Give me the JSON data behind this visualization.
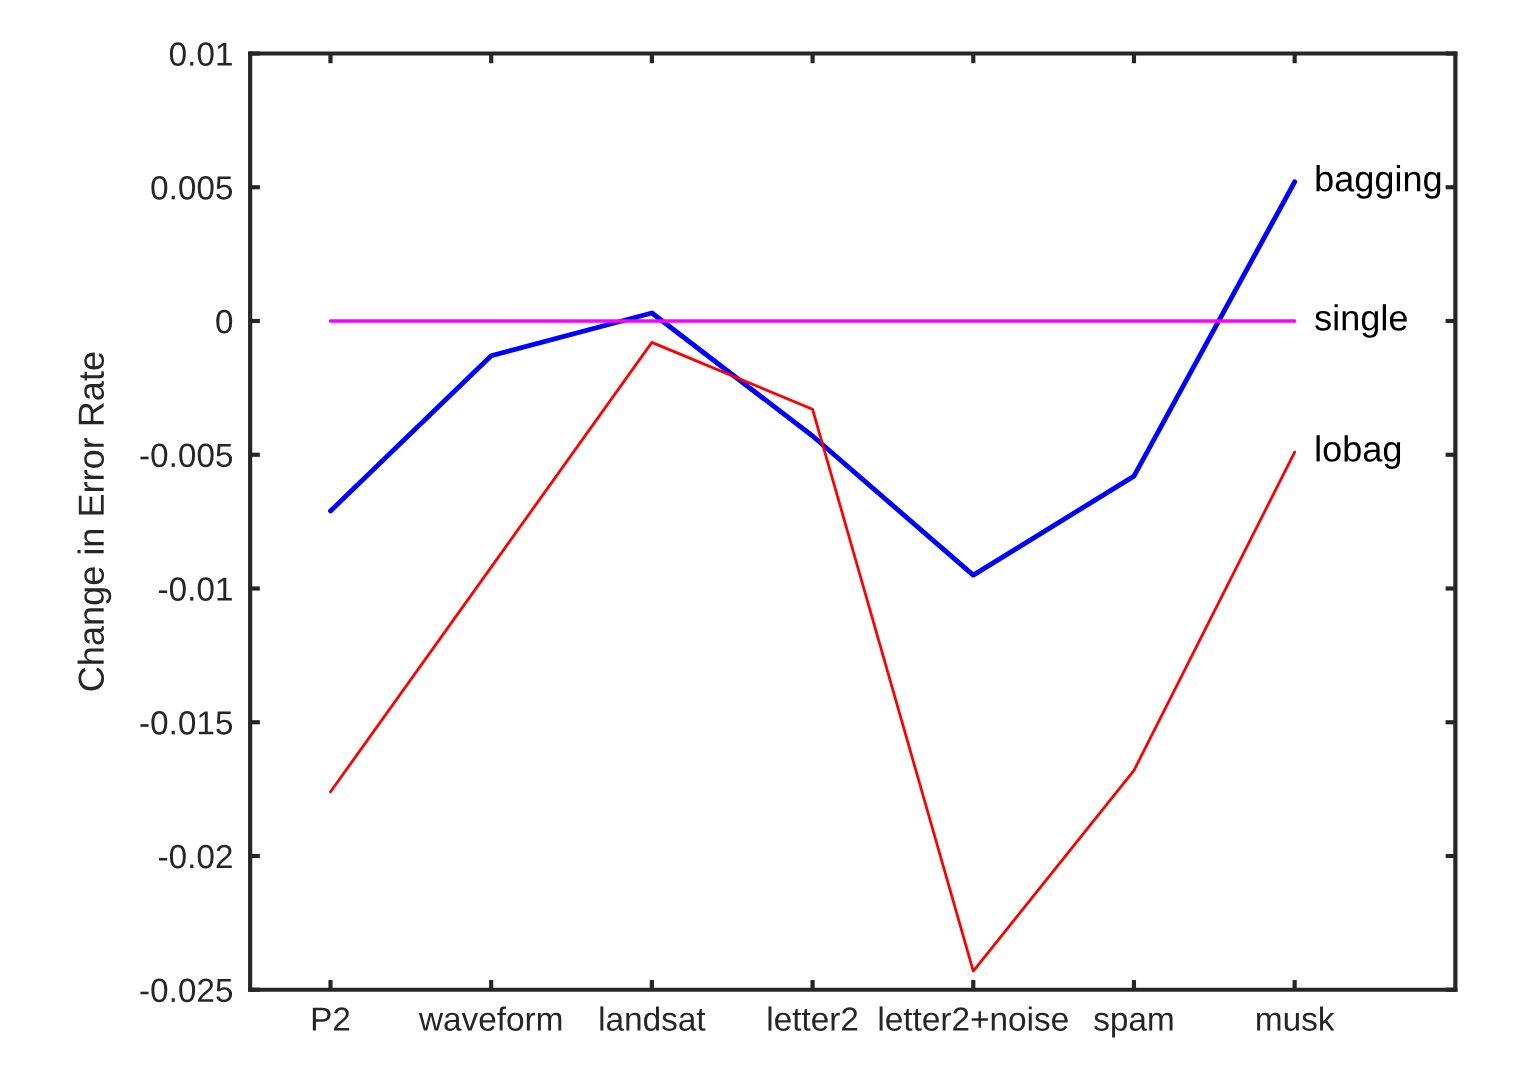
{
  "chart_data": {
    "type": "line",
    "ylabel": "Change in Error Rate",
    "categories": [
      "P2",
      "waveform",
      "landsat",
      "letter2",
      "letter2+noise",
      "spam",
      "musk"
    ],
    "series": [
      {
        "name": "bagging",
        "color": "#0000ff",
        "values": [
          -0.0071,
          -0.0013,
          0.0003,
          -0.0043,
          -0.0095,
          -0.0058,
          0.0052
        ]
      },
      {
        "name": "single",
        "color": "#ff00ff",
        "values": [
          0,
          0,
          0,
          0,
          0,
          0,
          0
        ]
      },
      {
        "name": "lobag",
        "color": "#ff0000",
        "values": [
          -0.0176,
          -0.0092,
          -0.0008,
          -0.0033,
          -0.0243,
          -0.0168,
          -0.0049
        ]
      }
    ],
    "ylim": [
      -0.025,
      0.01
    ],
    "yticks": [
      -0.025,
      -0.02,
      -0.015,
      -0.01,
      -0.005,
      0,
      0.005,
      0.01
    ],
    "grid": false,
    "legend": false,
    "marker": "none",
    "line_style": "solid"
  }
}
